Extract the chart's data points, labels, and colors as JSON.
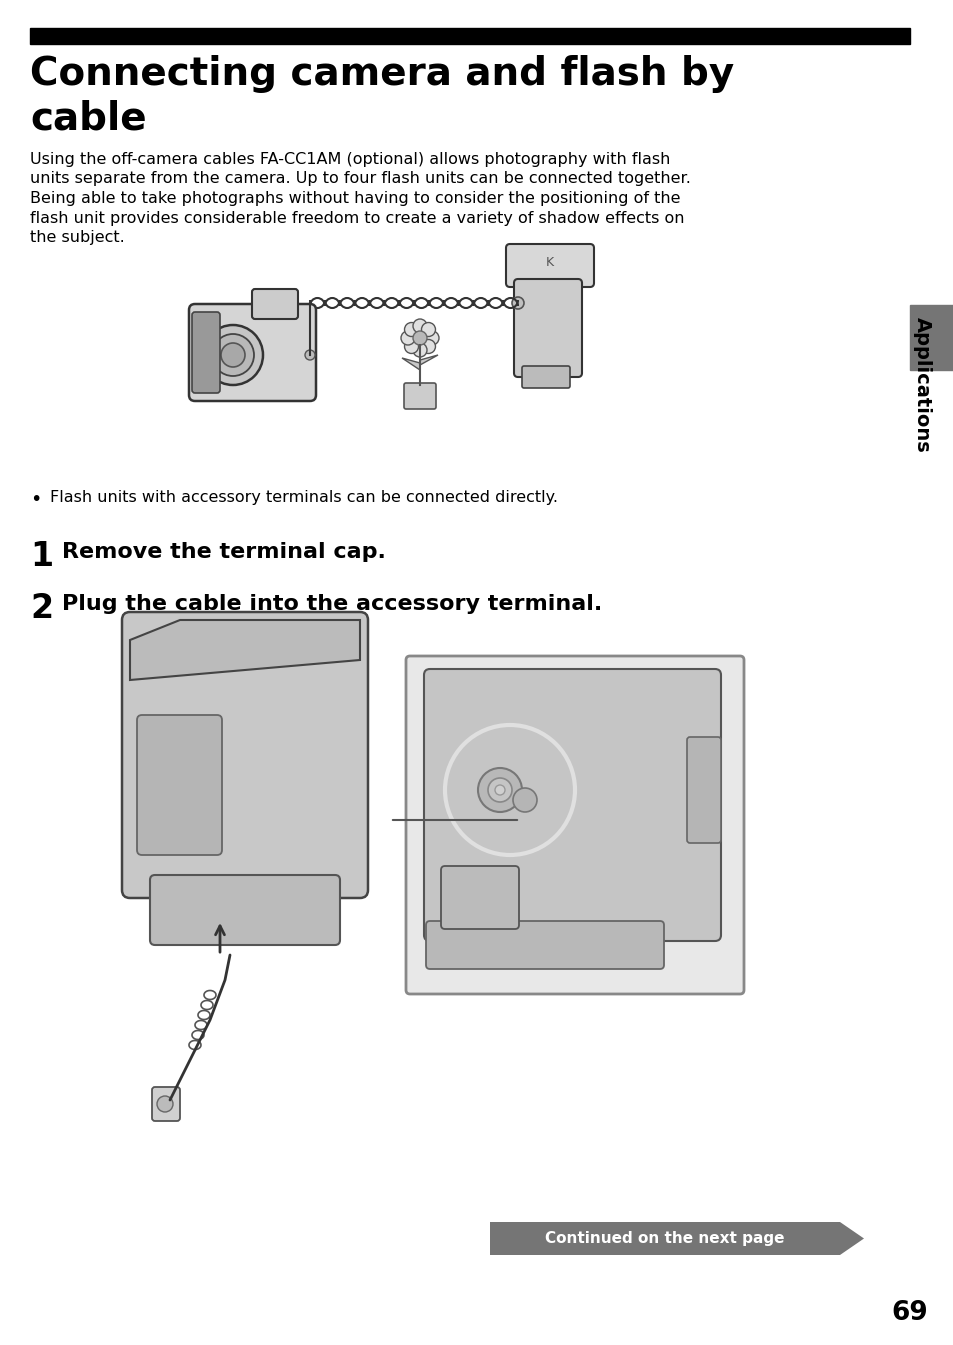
{
  "title_line1": "Connecting camera and flash by",
  "title_line2": "cable",
  "body_text_lines": [
    "Using the off-camera cables FA-CC1AM (optional) allows photography with flash",
    "units separate from the camera. Up to four flash units can be connected together.",
    "Being able to take photographs without having to consider the positioning of the",
    "flash unit provides considerable freedom to create a variety of shadow effects on",
    "the subject."
  ],
  "bullet_text": "Flash units with accessory terminals can be connected directly.",
  "step1_num": "1",
  "step1_text": "Remove the terminal cap.",
  "step2_num": "2",
  "step2_text": "Plug the cable into the accessory terminal.",
  "sidebar_text": "Applications",
  "sidebar_color": "#757575",
  "continued_text": "Continued on the next page",
  "continued_bg": "#757575",
  "page_number": "69",
  "header_bar_color": "#000000",
  "background_color": "#ffffff"
}
